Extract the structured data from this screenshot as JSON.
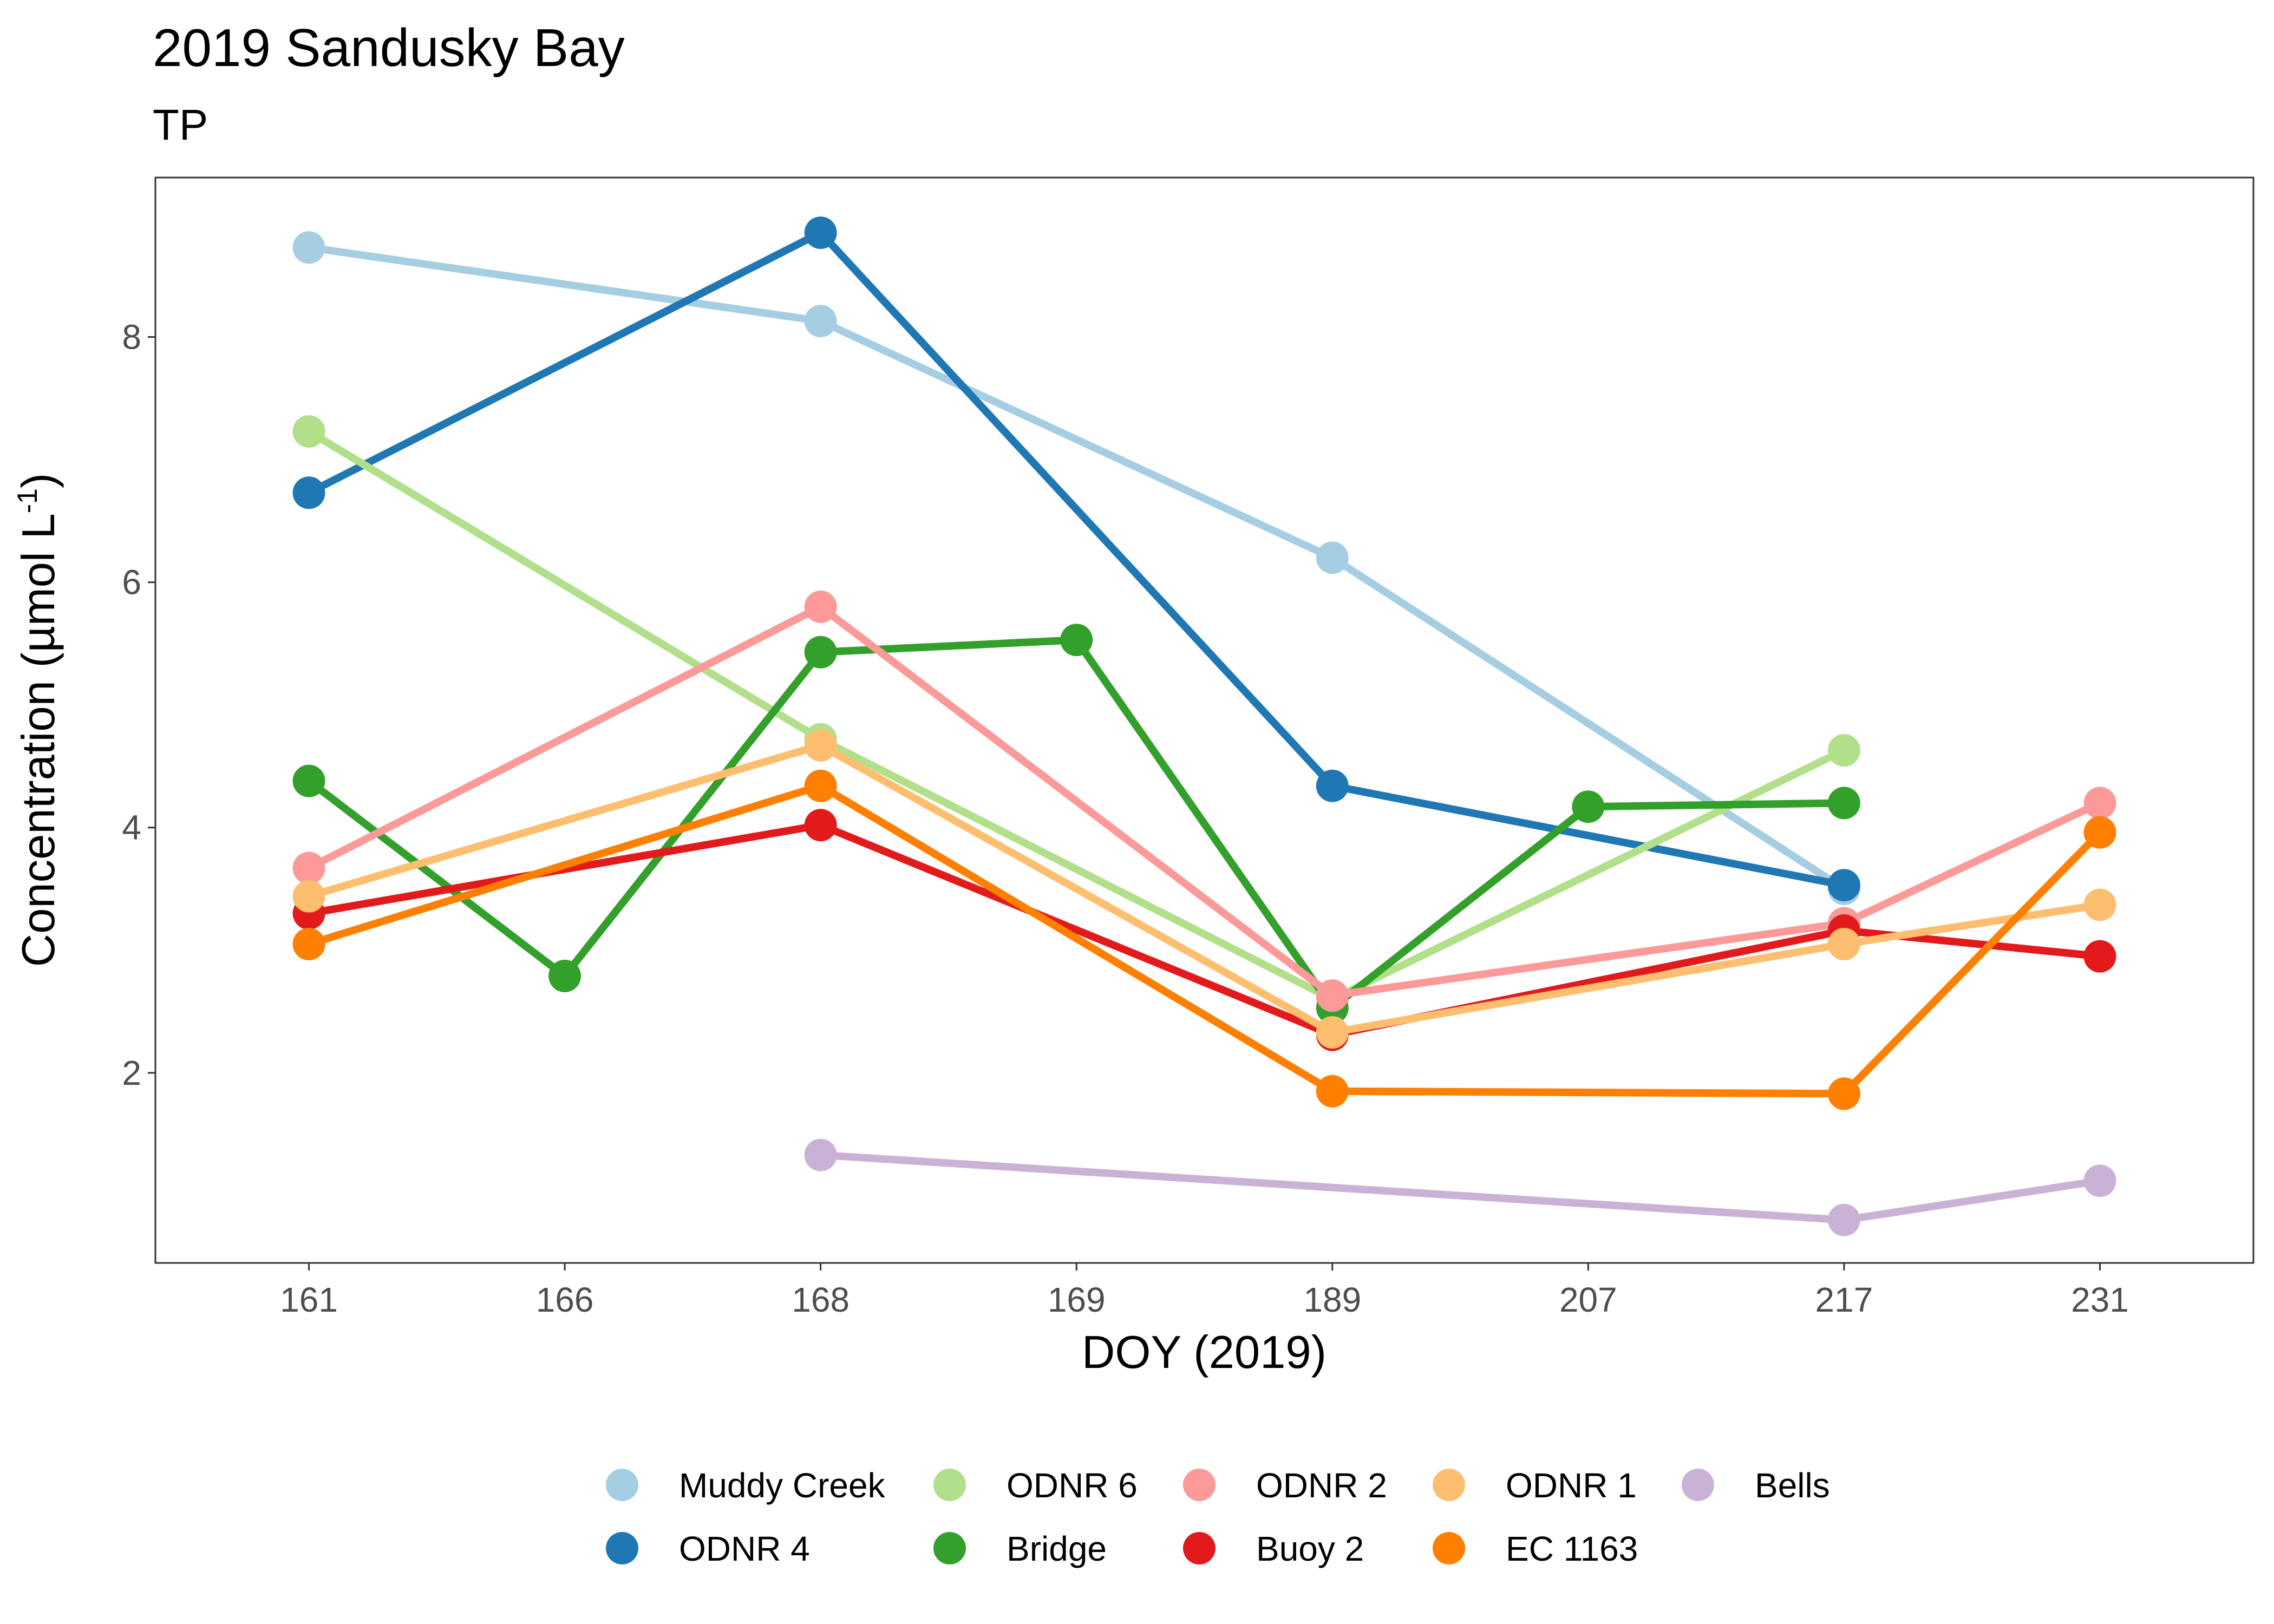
{
  "chart_data": {
    "type": "line",
    "title": "2019 Sandusky Bay",
    "subtitle": "TP",
    "xlabel": "DOY (2019)",
    "ylabel_main": "Concentration (µmol L",
    "ylabel_sup": "-1",
    "ylabel_close": ")",
    "categories": [
      "161",
      "166",
      "168",
      "169",
      "189",
      "207",
      "217",
      "231"
    ],
    "ylim": [
      0.45,
      9.3
    ],
    "yticks": [
      2,
      4,
      6,
      8
    ],
    "grid": false,
    "legend_position": "bottom",
    "series": [
      {
        "name": "Muddy Creek",
        "color": "#a6cee3",
        "points": [
          [
            "161",
            8.73
          ],
          [
            "168",
            8.13
          ],
          [
            "189",
            6.2
          ],
          [
            "217",
            3.5
          ]
        ]
      },
      {
        "name": "ODNR 4",
        "color": "#1f78b4",
        "points": [
          [
            "161",
            6.73
          ],
          [
            "168",
            8.85
          ],
          [
            "189",
            4.34
          ],
          [
            "217",
            3.53
          ]
        ]
      },
      {
        "name": "ODNR 6",
        "color": "#b2df8a",
        "points": [
          [
            "161",
            7.23
          ],
          [
            "168",
            4.72
          ],
          [
            "189",
            2.6
          ],
          [
            "217",
            4.63
          ]
        ]
      },
      {
        "name": "Bridge",
        "color": "#33a02c",
        "points": [
          [
            "161",
            4.38
          ],
          [
            "166",
            2.79
          ],
          [
            "168",
            5.43
          ],
          [
            "169",
            5.53
          ],
          [
            "189",
            2.53
          ],
          [
            "207",
            4.17
          ],
          [
            "217",
            4.2
          ]
        ]
      },
      {
        "name": "ODNR 2",
        "color": "#fb9a99",
        "points": [
          [
            "161",
            3.67
          ],
          [
            "168",
            5.8
          ],
          [
            "189",
            2.63
          ],
          [
            "217",
            3.22
          ],
          [
            "231",
            4.2
          ]
        ]
      },
      {
        "name": "Buoy 2",
        "color": "#e31a1c",
        "points": [
          [
            "161",
            3.3
          ],
          [
            "168",
            4.02
          ],
          [
            "189",
            2.31
          ],
          [
            "217",
            3.16
          ],
          [
            "231",
            2.95
          ]
        ]
      },
      {
        "name": "ODNR 1",
        "color": "#fdbf6f",
        "points": [
          [
            "161",
            3.44
          ],
          [
            "168",
            4.67
          ],
          [
            "189",
            2.33
          ],
          [
            "217",
            3.05
          ],
          [
            "231",
            3.37
          ]
        ]
      },
      {
        "name": "EC 1163",
        "color": "#ff7f00",
        "points": [
          [
            "161",
            3.05
          ],
          [
            "168",
            4.34
          ],
          [
            "189",
            1.85
          ],
          [
            "217",
            1.83
          ],
          [
            "231",
            3.96
          ]
        ]
      },
      {
        "name": "Bells",
        "color": "#cab2d6",
        "points": [
          [
            "168",
            1.33
          ],
          [
            "217",
            0.8
          ],
          [
            "231",
            1.12
          ]
        ]
      }
    ],
    "legend_order": [
      "Muddy Creek",
      "ODNR 6",
      "ODNR 2",
      "ODNR 1",
      "Bells",
      "ODNR 4",
      "Bridge",
      "Buoy 2",
      "EC 1163"
    ]
  }
}
